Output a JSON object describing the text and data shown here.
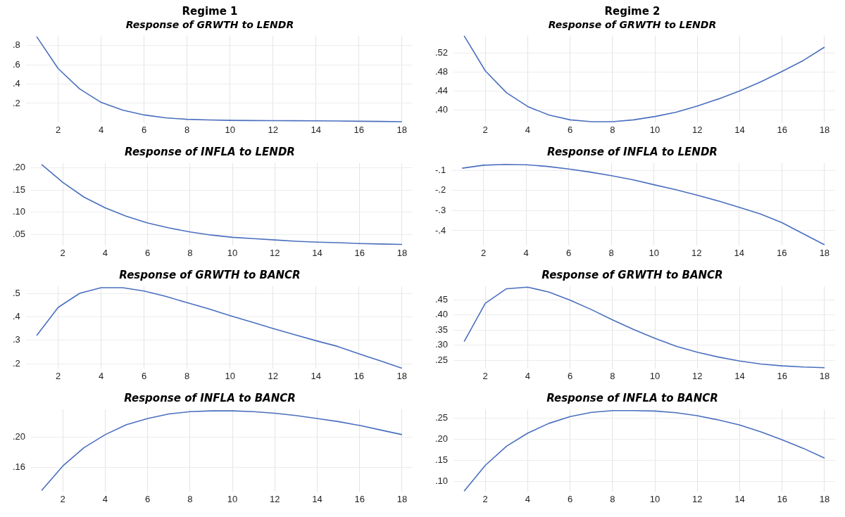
{
  "chart_data": [
    {
      "type": "line",
      "title": "Regime 1",
      "subtitle": "Response of GRWTH to LENDR",
      "x": [
        1,
        2,
        3,
        4,
        5,
        6,
        7,
        8,
        9,
        10,
        11,
        12,
        13,
        14,
        15,
        16,
        17,
        18
      ],
      "color": "#4a6fbf",
      "grid": true,
      "xlim": [
        0.5,
        18.5
      ],
      "xticks": [
        2,
        4,
        6,
        8,
        10,
        12,
        14,
        16,
        18
      ],
      "values": [
        0.89,
        0.56,
        0.35,
        0.21,
        0.13,
        0.08,
        0.05,
        0.035,
        0.028,
        0.024,
        0.022,
        0.021,
        0.02,
        0.019,
        0.017,
        0.015,
        0.013,
        0.01
      ],
      "ylim": [
        0,
        0.9
      ],
      "yticks": [
        {
          "value": 0.2,
          "label": ".2"
        },
        {
          "value": 0.4,
          "label": ".4"
        },
        {
          "value": 0.6,
          "label": ".6"
        },
        {
          "value": 0.8,
          "label": ".8"
        }
      ]
    },
    {
      "type": "line",
      "title": "Regime 2",
      "subtitle": "Response of GRWTH to LENDR",
      "x": [
        1,
        2,
        3,
        4,
        5,
        6,
        7,
        8,
        9,
        10,
        11,
        12,
        13,
        14,
        15,
        16,
        17,
        18
      ],
      "color": "#4a6fbf",
      "grid": true,
      "xlim": [
        0.5,
        18.5
      ],
      "xticks": [
        2,
        4,
        6,
        8,
        10,
        12,
        14,
        16,
        18
      ],
      "values": [
        0.557,
        0.483,
        0.437,
        0.408,
        0.39,
        0.38,
        0.376,
        0.376,
        0.38,
        0.387,
        0.396,
        0.409,
        0.424,
        0.441,
        0.46,
        0.482,
        0.505,
        0.533
      ],
      "ylim": [
        0.374,
        0.557
      ],
      "yticks": [
        {
          "value": 0.4,
          "label": ".40"
        },
        {
          "value": 0.44,
          "label": ".44"
        },
        {
          "value": 0.48,
          "label": ".48"
        },
        {
          "value": 0.52,
          "label": ".52"
        }
      ]
    },
    {
      "type": "line",
      "title": "Response of INFLA to LENDR",
      "x": [
        1,
        2,
        3,
        4,
        5,
        6,
        7,
        8,
        9,
        10,
        11,
        12,
        13,
        14,
        15,
        16,
        17,
        18
      ],
      "color": "#4a6fbf",
      "grid": true,
      "xlim": [
        0.5,
        18.5
      ],
      "xticks": [
        2,
        4,
        6,
        8,
        10,
        12,
        14,
        16,
        18
      ],
      "values": [
        0.207,
        0.167,
        0.134,
        0.11,
        0.091,
        0.076,
        0.065,
        0.056,
        0.049,
        0.044,
        0.041,
        0.038,
        0.035,
        0.033,
        0.032,
        0.03,
        0.029,
        0.028
      ],
      "ylim": [
        0.025,
        0.21
      ],
      "yticks": [
        {
          "value": 0.05,
          "label": ".05"
        },
        {
          "value": 0.1,
          "label": ".10"
        },
        {
          "value": 0.15,
          "label": ".15"
        },
        {
          "value": 0.2,
          "label": ".20"
        }
      ]
    },
    {
      "type": "line",
      "title": "Response of INFLA to LENDR",
      "x": [
        1,
        2,
        3,
        4,
        5,
        6,
        7,
        8,
        9,
        10,
        11,
        12,
        13,
        14,
        15,
        16,
        17,
        18
      ],
      "color": "#4a6fbf",
      "grid": true,
      "xlim": [
        0.5,
        18.5
      ],
      "xticks": [
        2,
        4,
        6,
        8,
        10,
        12,
        14,
        16,
        18
      ],
      "values": [
        -0.09,
        -0.075,
        -0.071,
        -0.073,
        -0.081,
        -0.094,
        -0.109,
        -0.127,
        -0.147,
        -0.172,
        -0.196,
        -0.223,
        -0.252,
        -0.284,
        -0.317,
        -0.36,
        -0.415,
        -0.47
      ],
      "ylim": [
        -0.475,
        -0.065
      ],
      "yticks": [
        {
          "value": -0.4,
          "label": "-.4"
        },
        {
          "value": -0.3,
          "label": "-.3"
        },
        {
          "value": -0.2,
          "label": "-.2"
        },
        {
          "value": -0.1,
          "label": "-.1"
        }
      ]
    },
    {
      "type": "line",
      "title": "Response of GRWTH to BANCR",
      "x": [
        1,
        2,
        3,
        4,
        5,
        6,
        7,
        8,
        9,
        10,
        11,
        12,
        13,
        14,
        15,
        16,
        17,
        18
      ],
      "color": "#4a6fbf",
      "grid": true,
      "xlim": [
        0.5,
        18.5
      ],
      "xticks": [
        2,
        4,
        6,
        8,
        10,
        12,
        14,
        16,
        18
      ],
      "values": [
        0.32,
        0.44,
        0.5,
        0.524,
        0.524,
        0.51,
        0.487,
        0.46,
        0.434,
        0.405,
        0.378,
        0.35,
        0.324,
        0.298,
        0.274,
        0.242,
        0.212,
        0.181
      ],
      "ylim": [
        0.178,
        0.53
      ],
      "yticks": [
        {
          "value": 0.2,
          "label": ".2"
        },
        {
          "value": 0.3,
          "label": ".3"
        },
        {
          "value": 0.4,
          "label": ".4"
        },
        {
          "value": 0.5,
          "label": ".5"
        }
      ]
    },
    {
      "type": "line",
      "title": "Response of GRWTH to BANCR",
      "x": [
        1,
        2,
        3,
        4,
        5,
        6,
        7,
        8,
        9,
        10,
        11,
        12,
        13,
        14,
        15,
        16,
        17,
        18
      ],
      "color": "#4a6fbf",
      "grid": true,
      "xlim": [
        0.5,
        18.5
      ],
      "xticks": [
        2,
        4,
        6,
        8,
        10,
        12,
        14,
        16,
        18
      ],
      "values": [
        0.312,
        0.439,
        0.487,
        0.492,
        0.476,
        0.449,
        0.418,
        0.384,
        0.352,
        0.323,
        0.297,
        0.277,
        0.261,
        0.248,
        0.238,
        0.232,
        0.228,
        0.226
      ],
      "ylim": [
        0.222,
        0.495
      ],
      "yticks": [
        {
          "value": 0.25,
          "label": ".25"
        },
        {
          "value": 0.3,
          "label": ".30"
        },
        {
          "value": 0.35,
          "label": ".35"
        },
        {
          "value": 0.4,
          "label": ".40"
        },
        {
          "value": 0.45,
          "label": ".45"
        }
      ]
    },
    {
      "type": "line",
      "title": "Response of INFLA to BANCR",
      "x": [
        1,
        2,
        3,
        4,
        5,
        6,
        7,
        8,
        9,
        10,
        11,
        12,
        13,
        14,
        15,
        16,
        17,
        18
      ],
      "color": "#4a6fbf",
      "grid": true,
      "xlim": [
        0.5,
        18.5
      ],
      "xticks": [
        2,
        4,
        6,
        8,
        10,
        12,
        14,
        16,
        18
      ],
      "values": [
        0.13,
        0.162,
        0.186,
        0.203,
        0.216,
        0.224,
        0.23,
        0.233,
        0.234,
        0.234,
        0.233,
        0.231,
        0.228,
        0.224,
        0.22,
        0.215,
        0.209,
        0.203
      ],
      "ylim": [
        0.128,
        0.236
      ],
      "yticks": [
        {
          "value": 0.16,
          "label": ".16"
        },
        {
          "value": 0.2,
          "label": ".20"
        }
      ]
    },
    {
      "type": "line",
      "title": "Response of INFLA to BANCR",
      "x": [
        1,
        2,
        3,
        4,
        5,
        6,
        7,
        8,
        9,
        10,
        11,
        12,
        13,
        14,
        15,
        16,
        17,
        18
      ],
      "color": "#4a6fbf",
      "grid": true,
      "xlim": [
        0.5,
        18.5
      ],
      "xticks": [
        2,
        4,
        6,
        8,
        10,
        12,
        14,
        16,
        18
      ],
      "values": [
        0.077,
        0.138,
        0.183,
        0.214,
        0.237,
        0.253,
        0.263,
        0.267,
        0.267,
        0.266,
        0.262,
        0.255,
        0.245,
        0.233,
        0.217,
        0.198,
        0.178,
        0.155
      ],
      "ylim": [
        0.075,
        0.27
      ],
      "yticks": [
        {
          "value": 0.1,
          "label": ".10"
        },
        {
          "value": 0.15,
          "label": ".15"
        },
        {
          "value": 0.2,
          "label": ".20"
        },
        {
          "value": 0.25,
          "label": ".25"
        }
      ]
    }
  ]
}
